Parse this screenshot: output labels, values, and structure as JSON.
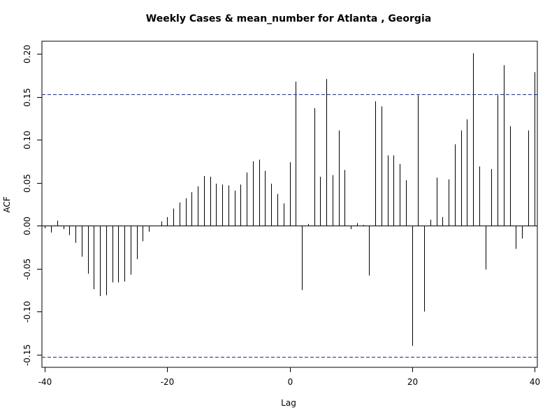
{
  "chart_data": {
    "type": "bar",
    "title": "Weekly Cases & mean_number for Atlanta , Georgia",
    "xlabel": "Lag",
    "ylabel": "ACF",
    "xlim": [
      -40.5,
      40.5
    ],
    "ylim": [
      -0.165,
      0.215
    ],
    "x_ticks": [
      -40,
      -20,
      0,
      20,
      40
    ],
    "x_tick_labels": [
      "-40",
      "-20",
      "0",
      "20",
      "40"
    ],
    "y_ticks": [
      -0.15,
      -0.1,
      -0.05,
      0.0,
      0.05,
      0.1,
      0.15,
      0.2
    ],
    "y_tick_labels": [
      "-0.15",
      "-0.10",
      "-0.05",
      "0.00",
      "0.05",
      "0.10",
      "0.15",
      "0.20"
    ],
    "confidence_bound": 0.153,
    "grid": false,
    "colors": {
      "bars": "#000000",
      "confidence_lines": "#1f2f8f",
      "frame": "#000000"
    },
    "lags": [
      -40,
      -39,
      -38,
      -37,
      -36,
      -35,
      -34,
      -33,
      -32,
      -31,
      -30,
      -29,
      -28,
      -27,
      -26,
      -25,
      -24,
      -23,
      -22,
      -21,
      -20,
      -19,
      -18,
      -17,
      -16,
      -15,
      -14,
      -13,
      -12,
      -11,
      -10,
      -9,
      -8,
      -7,
      -6,
      -5,
      -4,
      -3,
      -2,
      -1,
      0,
      1,
      2,
      3,
      4,
      5,
      6,
      7,
      8,
      9,
      10,
      11,
      12,
      13,
      14,
      15,
      16,
      17,
      18,
      19,
      20,
      21,
      22,
      23,
      24,
      25,
      26,
      27,
      28,
      29,
      30,
      31,
      32,
      33,
      34,
      35,
      36,
      37,
      38,
      39,
      40
    ],
    "values": [
      -0.003,
      -0.008,
      0.006,
      -0.004,
      -0.011,
      -0.02,
      -0.036,
      -0.056,
      -0.074,
      -0.082,
      -0.081,
      -0.066,
      -0.066,
      -0.065,
      -0.057,
      -0.039,
      -0.018,
      -0.007,
      0.0,
      0.005,
      0.01,
      0.02,
      0.027,
      0.032,
      0.039,
      0.046,
      0.058,
      0.057,
      0.049,
      0.048,
      0.047,
      0.041,
      0.048,
      0.062,
      0.075,
      0.077,
      0.064,
      0.049,
      0.037,
      0.026,
      0.074,
      0.168,
      -0.075,
      0.002,
      0.137,
      0.057,
      0.171,
      0.059,
      0.111,
      0.065,
      -0.004,
      0.003,
      0.001,
      -0.058,
      0.145,
      0.139,
      0.082,
      0.082,
      0.072,
      0.053,
      -0.14,
      0.152,
      -0.1,
      0.007,
      0.056,
      0.01,
      0.054,
      0.095,
      0.111,
      0.124,
      0.201,
      0.069,
      -0.051,
      0.066,
      0.152,
      0.187,
      0.116,
      -0.027,
      -0.015,
      0.111,
      0.179
    ]
  }
}
